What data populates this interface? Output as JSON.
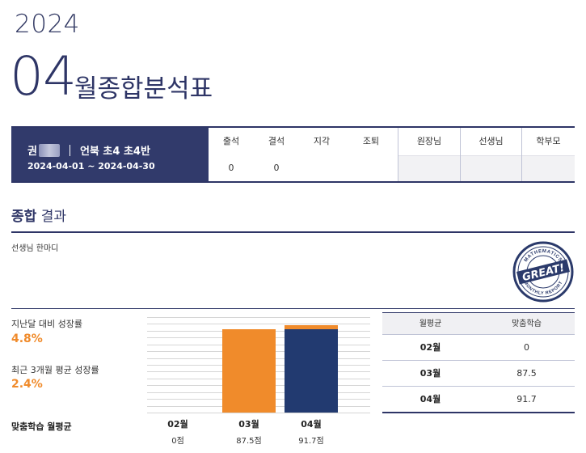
{
  "header": {
    "year": "2024",
    "month": "04",
    "title": "월종합분석표"
  },
  "student": {
    "name_visible": "권",
    "class_info": "언북 초4 초4반",
    "period": "2024-04-01 ~ 2024-04-30"
  },
  "attendance": {
    "columns": [
      {
        "label": "출석",
        "value": "0"
      },
      {
        "label": "결석",
        "value": "0"
      },
      {
        "label": "지각",
        "value": ""
      },
      {
        "label": "조퇴",
        "value": ""
      }
    ],
    "signatures": [
      {
        "label": "원장님"
      },
      {
        "label": "선생님"
      },
      {
        "label": "학부모"
      }
    ]
  },
  "summary": {
    "title_bold": "종합",
    "title_rest": "결과",
    "comment_label": "선생님 한마디",
    "stamp": {
      "top_text": "MATHEMATICS",
      "center_text": "GREAT!",
      "bottom_text": "MONTHLY REPORT",
      "color": "#2b3a6b"
    }
  },
  "growth": {
    "monthly_label": "지난달 대비 성장률",
    "monthly_value": "4.8%",
    "three_month_label": "최근 3개월 평균 성장률",
    "three_month_value": "2.4%"
  },
  "chart_data": {
    "type": "bar",
    "title": "맞춤학습 월평균",
    "categories": [
      "02월",
      "03월",
      "04월"
    ],
    "values": [
      0,
      87.5,
      91.7
    ],
    "value_labels": [
      "0점",
      "87.5점",
      "91.7점"
    ],
    "colors": [
      "#f08b2b",
      "#f08b2b",
      "#223a70"
    ],
    "ylim": [
      0,
      100
    ],
    "grid": true
  },
  "avg_table": {
    "headers": [
      "월평균",
      "맞춤학습"
    ],
    "rows": [
      {
        "month": "02월",
        "value": "0"
      },
      {
        "month": "03월",
        "value": "87.5"
      },
      {
        "month": "04월",
        "value": "91.7"
      }
    ]
  }
}
